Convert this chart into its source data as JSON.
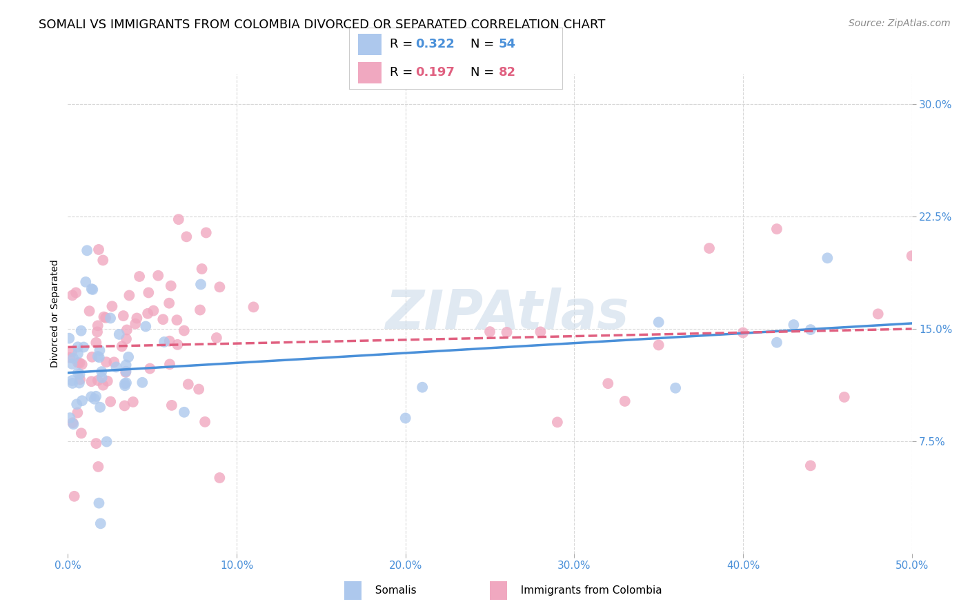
{
  "title": "SOMALI VS IMMIGRANTS FROM COLOMBIA DIVORCED OR SEPARATED CORRELATION CHART",
  "source": "Source: ZipAtlas.com",
  "ylabel": "Divorced or Separated",
  "xlim": [
    0.0,
    0.5
  ],
  "ylim": [
    0.0,
    0.32
  ],
  "somali_R": 0.322,
  "somali_N": 54,
  "colombia_R": 0.197,
  "colombia_N": 82,
  "somali_color": "#adc8ed",
  "colombia_color": "#f0a8c0",
  "somali_line_color": "#4a90d9",
  "colombia_line_color": "#e06080",
  "legend_label_1": "Somalis",
  "legend_label_2": "Immigrants from Colombia",
  "watermark": "ZIPAtlas",
  "background_color": "#ffffff",
  "grid_color": "#d8d8d8",
  "title_fontsize": 13,
  "axis_label_fontsize": 10,
  "tick_fontsize": 11,
  "legend_fontsize": 13,
  "source_fontsize": 10,
  "tick_color": "#4a90d9",
  "ytick_values": [
    0.075,
    0.15,
    0.225,
    0.3
  ],
  "ytick_labels": [
    "7.5%",
    "15.0%",
    "22.5%",
    "30.0%"
  ],
  "xtick_values": [
    0.0,
    0.1,
    0.2,
    0.3,
    0.4,
    0.5
  ],
  "xtick_labels": [
    "0.0%",
    "10.0%",
    "20.0%",
    "30.0%",
    "40.0%",
    "50.0%"
  ]
}
